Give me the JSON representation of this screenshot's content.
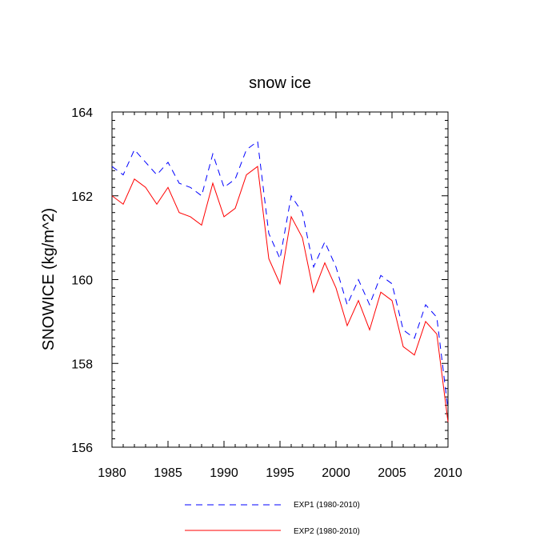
{
  "chart_data": {
    "type": "line",
    "title": "snow ice",
    "xlabel": "",
    "ylabel": "SNOWICE  (kg/m^2)",
    "xlim": [
      1980,
      2010
    ],
    "ylim": [
      156,
      164
    ],
    "x_ticks": [
      1980,
      1985,
      1990,
      1995,
      2000,
      2005,
      2010
    ],
    "y_ticks": [
      156,
      158,
      160,
      162,
      164
    ],
    "x_tick_labels": [
      "1980",
      "1985",
      "1990",
      "1995",
      "2000",
      "2005",
      "2010"
    ],
    "y_tick_labels": [
      "156",
      "158",
      "160",
      "162",
      "164"
    ],
    "x": [
      1980,
      1981,
      1982,
      1983,
      1984,
      1985,
      1986,
      1987,
      1988,
      1989,
      1990,
      1991,
      1992,
      1993,
      1994,
      1995,
      1996,
      1997,
      1998,
      1999,
      2000,
      2001,
      2002,
      2003,
      2004,
      2005,
      2006,
      2007,
      2008,
      2009,
      2010
    ],
    "series": [
      {
        "name": "EXP1 (1980-2010)",
        "color": "#0000ff",
        "style": "dashed",
        "values": [
          162.7,
          162.5,
          163.1,
          162.8,
          162.5,
          162.8,
          162.3,
          162.2,
          162.0,
          163.0,
          162.2,
          162.4,
          163.1,
          163.3,
          161.1,
          160.5,
          162.0,
          161.6,
          160.3,
          160.9,
          160.3,
          159.4,
          160.0,
          159.4,
          160.1,
          159.9,
          158.8,
          158.6,
          159.4,
          159.1,
          156.9
        ]
      },
      {
        "name": "EXP2 (1980-2010)",
        "color": "#ff0000",
        "style": "solid",
        "values": [
          162.0,
          161.8,
          162.4,
          162.2,
          161.8,
          162.2,
          161.6,
          161.5,
          161.3,
          162.3,
          161.5,
          161.7,
          162.5,
          162.7,
          160.5,
          159.9,
          161.5,
          161.0,
          159.7,
          160.4,
          159.8,
          158.9,
          159.5,
          158.8,
          159.7,
          159.5,
          158.4,
          158.2,
          159.0,
          158.7,
          156.6
        ]
      }
    ],
    "legend": {
      "placement": "bottom",
      "entries": [
        "EXP1 (1980-2010)",
        "EXP2 (1980-2010)"
      ]
    },
    "grid": false
  }
}
